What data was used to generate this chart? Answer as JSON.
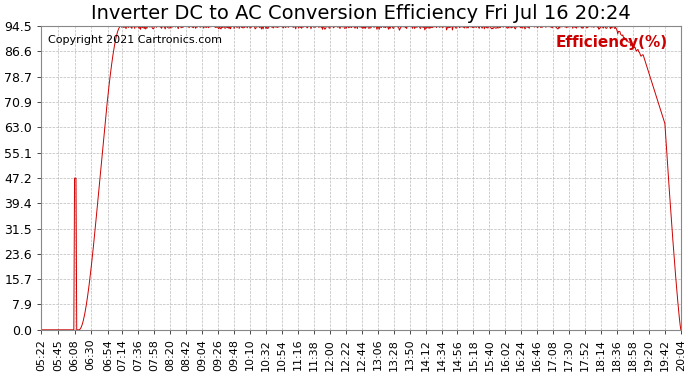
{
  "title": "Inverter DC to AC Conversion Efficiency Fri Jul 16 20:24",
  "copyright": "Copyright 2021 Cartronics.com",
  "legend_label": "Efficiency(%)",
  "line_color": "#cc0000",
  "background_color": "#ffffff",
  "grid_color": "#bbbbbb",
  "yticks": [
    0.0,
    7.9,
    15.7,
    23.6,
    31.5,
    39.4,
    47.2,
    55.1,
    63.0,
    70.9,
    78.7,
    86.6,
    94.5
  ],
  "ymin": 0.0,
  "ymax": 94.5,
  "title_fontsize": 14,
  "axis_fontsize": 9,
  "copyright_fontsize": 8,
  "legend_fontsize": 11,
  "xtick_labels": [
    "05:22",
    "05:45",
    "06:08",
    "06:30",
    "06:54",
    "07:14",
    "07:36",
    "07:58",
    "08:20",
    "08:42",
    "09:04",
    "09:26",
    "09:48",
    "10:10",
    "10:32",
    "10:54",
    "11:16",
    "11:38",
    "12:00",
    "12:22",
    "12:44",
    "13:06",
    "13:28",
    "13:50",
    "14:12",
    "14:34",
    "14:56",
    "15:18",
    "15:40",
    "16:02",
    "16:24",
    "16:46",
    "17:08",
    "17:30",
    "17:52",
    "18:14",
    "18:36",
    "18:58",
    "19:20",
    "19:42",
    "20:04"
  ]
}
